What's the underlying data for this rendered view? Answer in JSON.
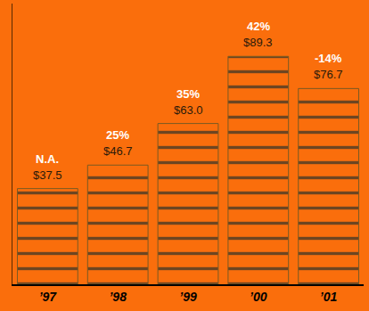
{
  "chart_data": {
    "type": "bar",
    "categories": [
      "’97",
      "’98",
      "’99",
      "’00",
      "’01"
    ],
    "values": [
      37.5,
      46.7,
      63.0,
      89.3,
      76.7
    ],
    "value_labels": [
      "$37.5",
      "$46.7",
      "$63.0",
      "$89.3",
      "$76.7"
    ],
    "annotations": [
      "N.A.",
      "25%",
      "35%",
      "42%",
      "-14%"
    ],
    "color": "#e2b64c",
    "ylim": [
      0,
      110
    ],
    "data_labels": true,
    "tick_labels": "x",
    "grid": false
  }
}
